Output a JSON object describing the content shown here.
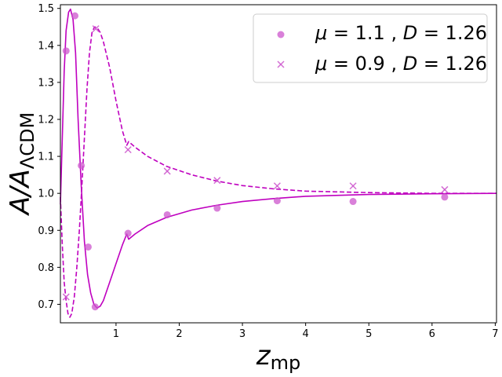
{
  "chart_data": {
    "type": "scatter",
    "xlabel_main": "z",
    "xlabel_sub": "mp",
    "ylabel_main": "A/A",
    "ylabel_sub": "ΛCDM",
    "xlim": [
      0.12,
      7.02
    ],
    "ylim": [
      0.65,
      1.51
    ],
    "x_ticks": [
      1,
      2,
      3,
      4,
      5,
      6,
      7
    ],
    "y_ticks": [
      0.7,
      0.8,
      0.9,
      1.0,
      1.1,
      1.2,
      1.3,
      1.4,
      1.5
    ],
    "x_tick_labels": [
      "1",
      "2",
      "3",
      "4",
      "5",
      "6",
      "7"
    ],
    "y_tick_labels": [
      "0.7",
      "0.8",
      "0.9",
      "1.0",
      "1.1",
      "1.2",
      "1.3",
      "1.4",
      "1.5"
    ],
    "color": "#bf00bf",
    "marker_color": "#cc55cc",
    "legend_position": "top-right",
    "series": [
      {
        "name": "μ = 1.1 , D = 1.26",
        "name_parts": [
          "μ",
          " = 1.1 , ",
          "D",
          " = 1.26"
        ],
        "marker": "circle",
        "points": [
          [
            0.21,
            1.385
          ],
          [
            0.35,
            1.48
          ],
          [
            0.45,
            1.075
          ],
          [
            0.56,
            0.855
          ],
          [
            0.67,
            0.693
          ],
          [
            1.19,
            0.892
          ],
          [
            1.81,
            0.942
          ],
          [
            2.6,
            0.96
          ],
          [
            3.55,
            0.98
          ],
          [
            4.75,
            0.978
          ],
          [
            6.2,
            0.99
          ]
        ],
        "curve": [
          [
            0.12,
            0.97
          ],
          [
            0.15,
            1.15
          ],
          [
            0.18,
            1.33
          ],
          [
            0.21,
            1.44
          ],
          [
            0.25,
            1.49
          ],
          [
            0.28,
            1.498
          ],
          [
            0.32,
            1.47
          ],
          [
            0.36,
            1.38
          ],
          [
            0.4,
            1.2
          ],
          [
            0.45,
            1.02
          ],
          [
            0.5,
            0.87
          ],
          [
            0.55,
            0.78
          ],
          [
            0.6,
            0.73
          ],
          [
            0.65,
            0.7
          ],
          [
            0.7,
            0.69
          ],
          [
            0.75,
            0.695
          ],
          [
            0.8,
            0.71
          ],
          [
            0.9,
            0.76
          ],
          [
            1.0,
            0.81
          ],
          [
            1.1,
            0.86
          ],
          [
            1.17,
            0.89
          ],
          [
            1.2,
            0.876
          ],
          [
            1.3,
            0.89
          ],
          [
            1.5,
            0.913
          ],
          [
            1.8,
            0.935
          ],
          [
            2.2,
            0.955
          ],
          [
            2.6,
            0.968
          ],
          [
            3.0,
            0.978
          ],
          [
            3.5,
            0.986
          ],
          [
            4.0,
            0.992
          ],
          [
            5.0,
            0.997
          ],
          [
            6.0,
            0.999
          ],
          [
            7.02,
            1.0
          ]
        ]
      },
      {
        "name": "μ = 0.9 , D = 1.26",
        "name_parts": [
          "μ",
          " = 0.9 , ",
          "D",
          " = 1.26"
        ],
        "marker": "x",
        "points": [
          [
            0.21,
            0.72
          ],
          [
            0.68,
            1.445
          ],
          [
            1.19,
            1.118
          ],
          [
            1.81,
            1.06
          ],
          [
            2.6,
            1.035
          ],
          [
            3.55,
            1.02
          ],
          [
            4.75,
            1.02
          ],
          [
            6.2,
            1.01
          ]
        ],
        "curve": [
          [
            0.12,
            0.99
          ],
          [
            0.15,
            0.86
          ],
          [
            0.18,
            0.76
          ],
          [
            0.21,
            0.71
          ],
          [
            0.24,
            0.675
          ],
          [
            0.27,
            0.665
          ],
          [
            0.3,
            0.675
          ],
          [
            0.34,
            0.72
          ],
          [
            0.38,
            0.8
          ],
          [
            0.42,
            0.9
          ],
          [
            0.46,
            1.02
          ],
          [
            0.5,
            1.15
          ],
          [
            0.54,
            1.28
          ],
          [
            0.58,
            1.38
          ],
          [
            0.62,
            1.435
          ],
          [
            0.66,
            1.45
          ],
          [
            0.7,
            1.448
          ],
          [
            0.75,
            1.435
          ],
          [
            0.8,
            1.41
          ],
          [
            0.9,
            1.34
          ],
          [
            1.0,
            1.25
          ],
          [
            1.1,
            1.17
          ],
          [
            1.17,
            1.13
          ],
          [
            1.2,
            1.14
          ],
          [
            1.3,
            1.125
          ],
          [
            1.5,
            1.1
          ],
          [
            1.8,
            1.073
          ],
          [
            2.2,
            1.05
          ],
          [
            2.6,
            1.033
          ],
          [
            3.0,
            1.021
          ],
          [
            3.5,
            1.012
          ],
          [
            4.0,
            1.006
          ],
          [
            5.0,
            1.002
          ],
          [
            6.0,
            1.0
          ],
          [
            7.02,
            1.0
          ]
        ]
      }
    ]
  }
}
